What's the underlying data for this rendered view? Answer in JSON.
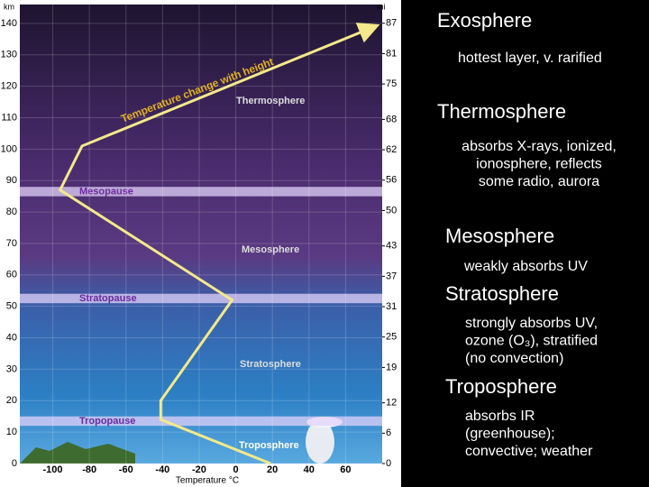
{
  "chart_data": {
    "type": "line",
    "title": "Temperature change with height",
    "x_label": "Temperature °C",
    "y_label": "km",
    "y2_label": "mi",
    "xlim": [
      -118,
      80
    ],
    "xticks": [
      -100,
      -80,
      -60,
      -40,
      -20,
      0,
      20,
      40,
      60
    ],
    "ylim": [
      0,
      146
    ],
    "yticks": [
      0,
      10,
      20,
      30,
      40,
      50,
      60,
      70,
      80,
      90,
      100,
      110,
      120,
      130,
      140
    ],
    "y2lim": [
      0,
      90.7
    ],
    "y2ticks": [
      0,
      6,
      12,
      19,
      25,
      31,
      37,
      43,
      50,
      56,
      62,
      68,
      75,
      81,
      87
    ],
    "grid": true,
    "series": [
      {
        "color": "#f3e98a",
        "x": [
          19,
          -41,
          -41,
          -2,
          -96,
          -84,
          76
        ],
        "values": [
          0,
          14,
          20,
          52,
          87,
          101,
          139
        ]
      }
    ],
    "bands": [
      {
        "label": "Tropopause",
        "range": [
          12,
          15
        ]
      },
      {
        "label": "Stratopause",
        "range": [
          51,
          54
        ]
      },
      {
        "label": "Mesopause",
        "range": [
          85,
          88
        ]
      }
    ],
    "layers": [
      "Thermosphere",
      "Mesosphere",
      "Stratosphere",
      "Troposphere"
    ]
  },
  "notes": [
    {
      "heading": "Exosphere",
      "lines": [
        "hottest layer, v. rarified"
      ]
    },
    {
      "heading": "Thermosphere",
      "lines": [
        "absorbs X-rays, ionized,",
        "ionosphere, reflects",
        "some radio, aurora"
      ]
    },
    {
      "heading": "Mesosphere",
      "lines": [
        "weakly absorbs UV"
      ]
    },
    {
      "heading": "Stratosphere",
      "lines": [
        "strongly absorbs UV,",
        "ozone (O₃), stratified",
        "(no convection)"
      ]
    },
    {
      "heading": "Troposphere",
      "lines": [
        "absorbs IR",
        "(greenhouse);",
        "convective; weather"
      ]
    }
  ]
}
